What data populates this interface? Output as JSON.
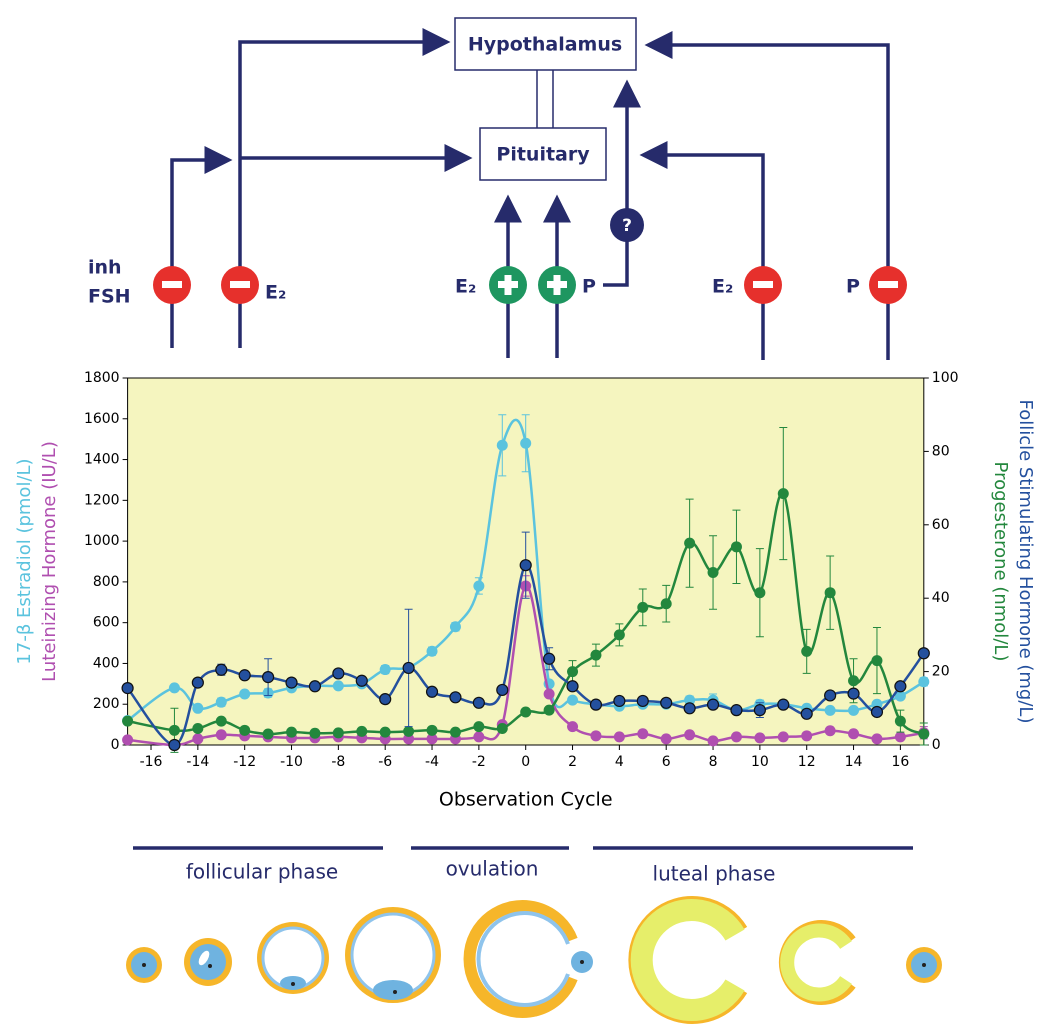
{
  "diagram": {
    "hypothalamus": "Hypothalamus",
    "pituitary": "Pituitary",
    "inh": "inh",
    "fsh": "FSH",
    "e2_left": "E₂",
    "e2_mid": "E₂",
    "p_mid": "P",
    "question": "?",
    "e2_right": "E₂",
    "p_right": "P"
  },
  "chart_data": {
    "type": "line",
    "xlabel": "Observation Cycle",
    "ylabels": [
      "17-β Estradiol (pmol/L)",
      "Luteinizing Hormone (IU/L)"
    ],
    "y2labels": [
      "Follicle Stimulating Hormone (mg/L)",
      "Progesterone (nmol/L)"
    ],
    "x": [
      -17,
      -15,
      -14,
      -13,
      -12,
      -11,
      -10,
      -9,
      -8,
      -7,
      -6,
      -5,
      -4,
      -3,
      -2,
      -1,
      0,
      1,
      2,
      3,
      4,
      5,
      6,
      7,
      8,
      9,
      10,
      11,
      12,
      13,
      14,
      15,
      16,
      17
    ],
    "xlim": [
      -17,
      17
    ],
    "xticks": [
      -16,
      -14,
      -12,
      -10,
      -8,
      -6,
      -4,
      -2,
      0,
      2,
      4,
      6,
      8,
      10,
      12,
      14,
      16
    ],
    "ylim": [
      0,
      1800
    ],
    "yticks": [
      0,
      200,
      400,
      600,
      800,
      1000,
      1200,
      1400,
      1600,
      1800
    ],
    "y2lim": [
      0,
      100
    ],
    "y2ticks": [
      0,
      20,
      40,
      60,
      80,
      100
    ],
    "background": "#f5f5bf",
    "series": [
      {
        "name": "17-β Estradiol",
        "color": "#5bc3de",
        "axis": "y",
        "values": [
          120,
          280,
          180,
          210,
          250,
          255,
          280,
          290,
          290,
          300,
          370,
          380,
          460,
          580,
          780,
          1470,
          1480,
          300,
          220,
          200,
          190,
          200,
          200,
          220,
          220,
          170,
          200,
          200,
          180,
          170,
          170,
          200,
          240,
          310
        ],
        "errors": [
          null,
          null,
          null,
          20,
          null,
          20,
          null,
          null,
          null,
          null,
          20,
          null,
          20,
          20,
          40,
          150,
          140,
          null,
          null,
          null,
          null,
          null,
          null,
          20,
          30,
          null,
          20,
          20,
          null,
          null,
          null,
          null,
          null,
          20
        ]
      },
      {
        "name": "Luteinizing Hormone",
        "color": "#b04fb0",
        "axis": "y",
        "values": [
          25,
          0,
          30,
          50,
          45,
          40,
          35,
          35,
          40,
          35,
          30,
          30,
          30,
          30,
          40,
          100,
          780,
          250,
          90,
          45,
          40,
          55,
          30,
          50,
          20,
          40,
          35,
          40,
          45,
          70,
          55,
          30,
          40,
          60
        ],
        "errors": [
          null,
          null,
          null,
          null,
          null,
          null,
          null,
          null,
          null,
          null,
          null,
          null,
          null,
          null,
          null,
          null,
          50,
          null,
          null,
          null,
          null,
          null,
          null,
          null,
          null,
          null,
          null,
          null,
          null,
          null,
          null,
          null,
          null,
          30
        ]
      },
      {
        "name": "Progesterone",
        "color": "#23873d",
        "axis": "y2",
        "values": [
          6.5,
          4,
          4.5,
          6.5,
          4,
          3,
          3.5,
          3.2,
          3.3,
          3.7,
          3.5,
          3.7,
          4,
          3.5,
          5,
          4.5,
          9,
          9.5,
          20,
          24.5,
          30,
          37.5,
          38.5,
          55,
          47,
          54,
          41.5,
          68.5,
          25.5,
          41.5,
          17.5,
          23,
          6.5,
          3
        ],
        "errors": [
          null,
          6,
          null,
          null,
          null,
          null,
          null,
          null,
          null,
          null,
          null,
          null,
          null,
          null,
          null,
          null,
          null,
          null,
          3,
          3,
          3,
          5,
          5,
          12,
          10,
          10,
          12,
          18,
          6,
          10,
          6,
          9,
          3,
          3
        ]
      },
      {
        "name": "Follicle Stimulating Hormone",
        "color": "#24509e",
        "axis": "y2",
        "values": [
          15.5,
          0,
          17,
          20.5,
          19,
          18.5,
          17,
          16,
          19.5,
          17.5,
          12.5,
          21,
          14.5,
          13,
          11.5,
          15,
          49,
          23.5,
          16,
          11,
          12,
          12,
          11.5,
          10,
          11,
          9.5,
          9.5,
          11,
          8.5,
          13.5,
          14,
          9,
          16,
          25
        ],
        "errors": [
          null,
          null,
          null,
          1.5,
          null,
          5,
          null,
          null,
          null,
          null,
          null,
          16,
          null,
          null,
          null,
          null,
          9,
          3,
          null,
          null,
          null,
          null,
          null,
          null,
          null,
          null,
          2,
          null,
          null,
          null,
          null,
          null,
          null,
          null
        ]
      }
    ]
  },
  "phases": {
    "follicular": "follicular phase",
    "ovulation": "ovulation",
    "luteal": "luteal phase"
  }
}
